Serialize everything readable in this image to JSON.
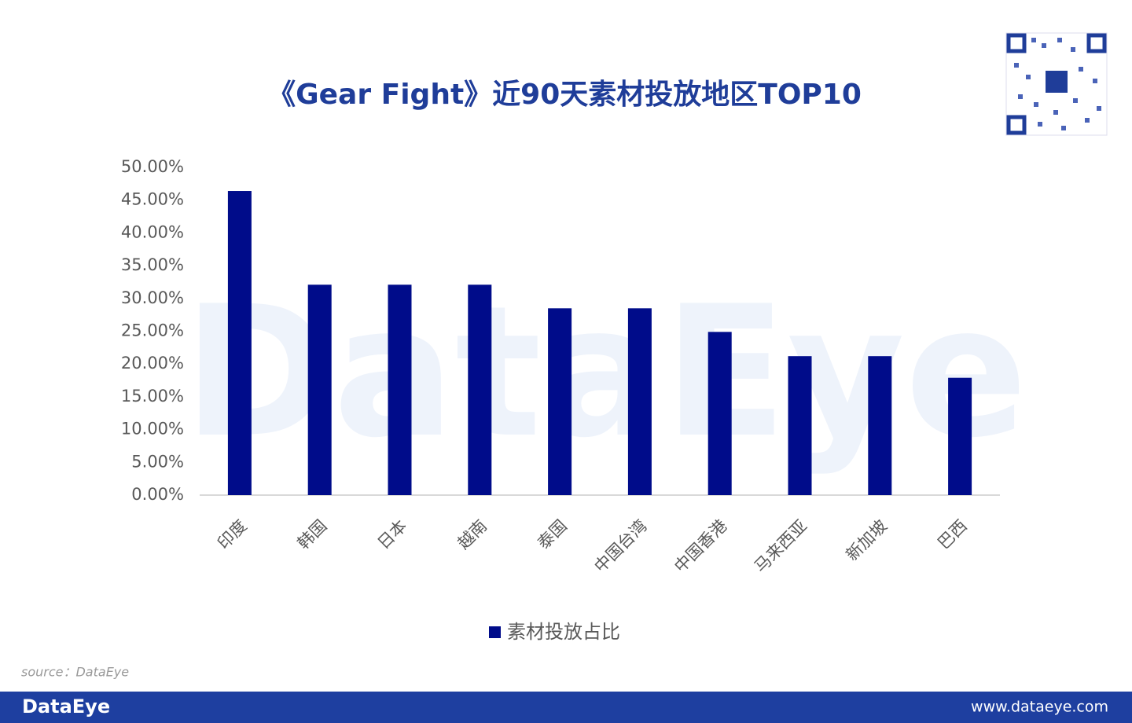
{
  "chart_data": {
    "type": "bar",
    "title": "《Gear Fight》近90天素材投放地区TOP10",
    "categories": [
      "印度",
      "韩国",
      "日本",
      "越南",
      "泰国",
      "中国台湾",
      "中国香港",
      "马来西亚",
      "新加坡",
      "巴西"
    ],
    "series": [
      {
        "name": "素材投放占比",
        "color": "#000c8a",
        "values": [
          46.4,
          32.1,
          32.1,
          32.1,
          28.5,
          28.5,
          24.9,
          21.2,
          21.2,
          17.9
        ]
      }
    ],
    "ylim": [
      0,
      50
    ],
    "yticks": [
      {
        "value": 0,
        "label": "0.00%"
      },
      {
        "value": 5,
        "label": "5.00%"
      },
      {
        "value": 10,
        "label": "10.00%"
      },
      {
        "value": 15,
        "label": "15.00%"
      },
      {
        "value": 20,
        "label": "20.00%"
      },
      {
        "value": 25,
        "label": "25.00%"
      },
      {
        "value": 30,
        "label": "30.00%"
      },
      {
        "value": 35,
        "label": "35.00%"
      },
      {
        "value": 40,
        "label": "40.00%"
      },
      {
        "value": 45,
        "label": "45.00%"
      },
      {
        "value": 50,
        "label": "50.00%"
      }
    ],
    "grid": false,
    "legend": "bottom",
    "source": "source：DataEye",
    "footer_left": "DataEye",
    "footer_right": "www.dataeye.com",
    "watermark": "DataEye"
  }
}
